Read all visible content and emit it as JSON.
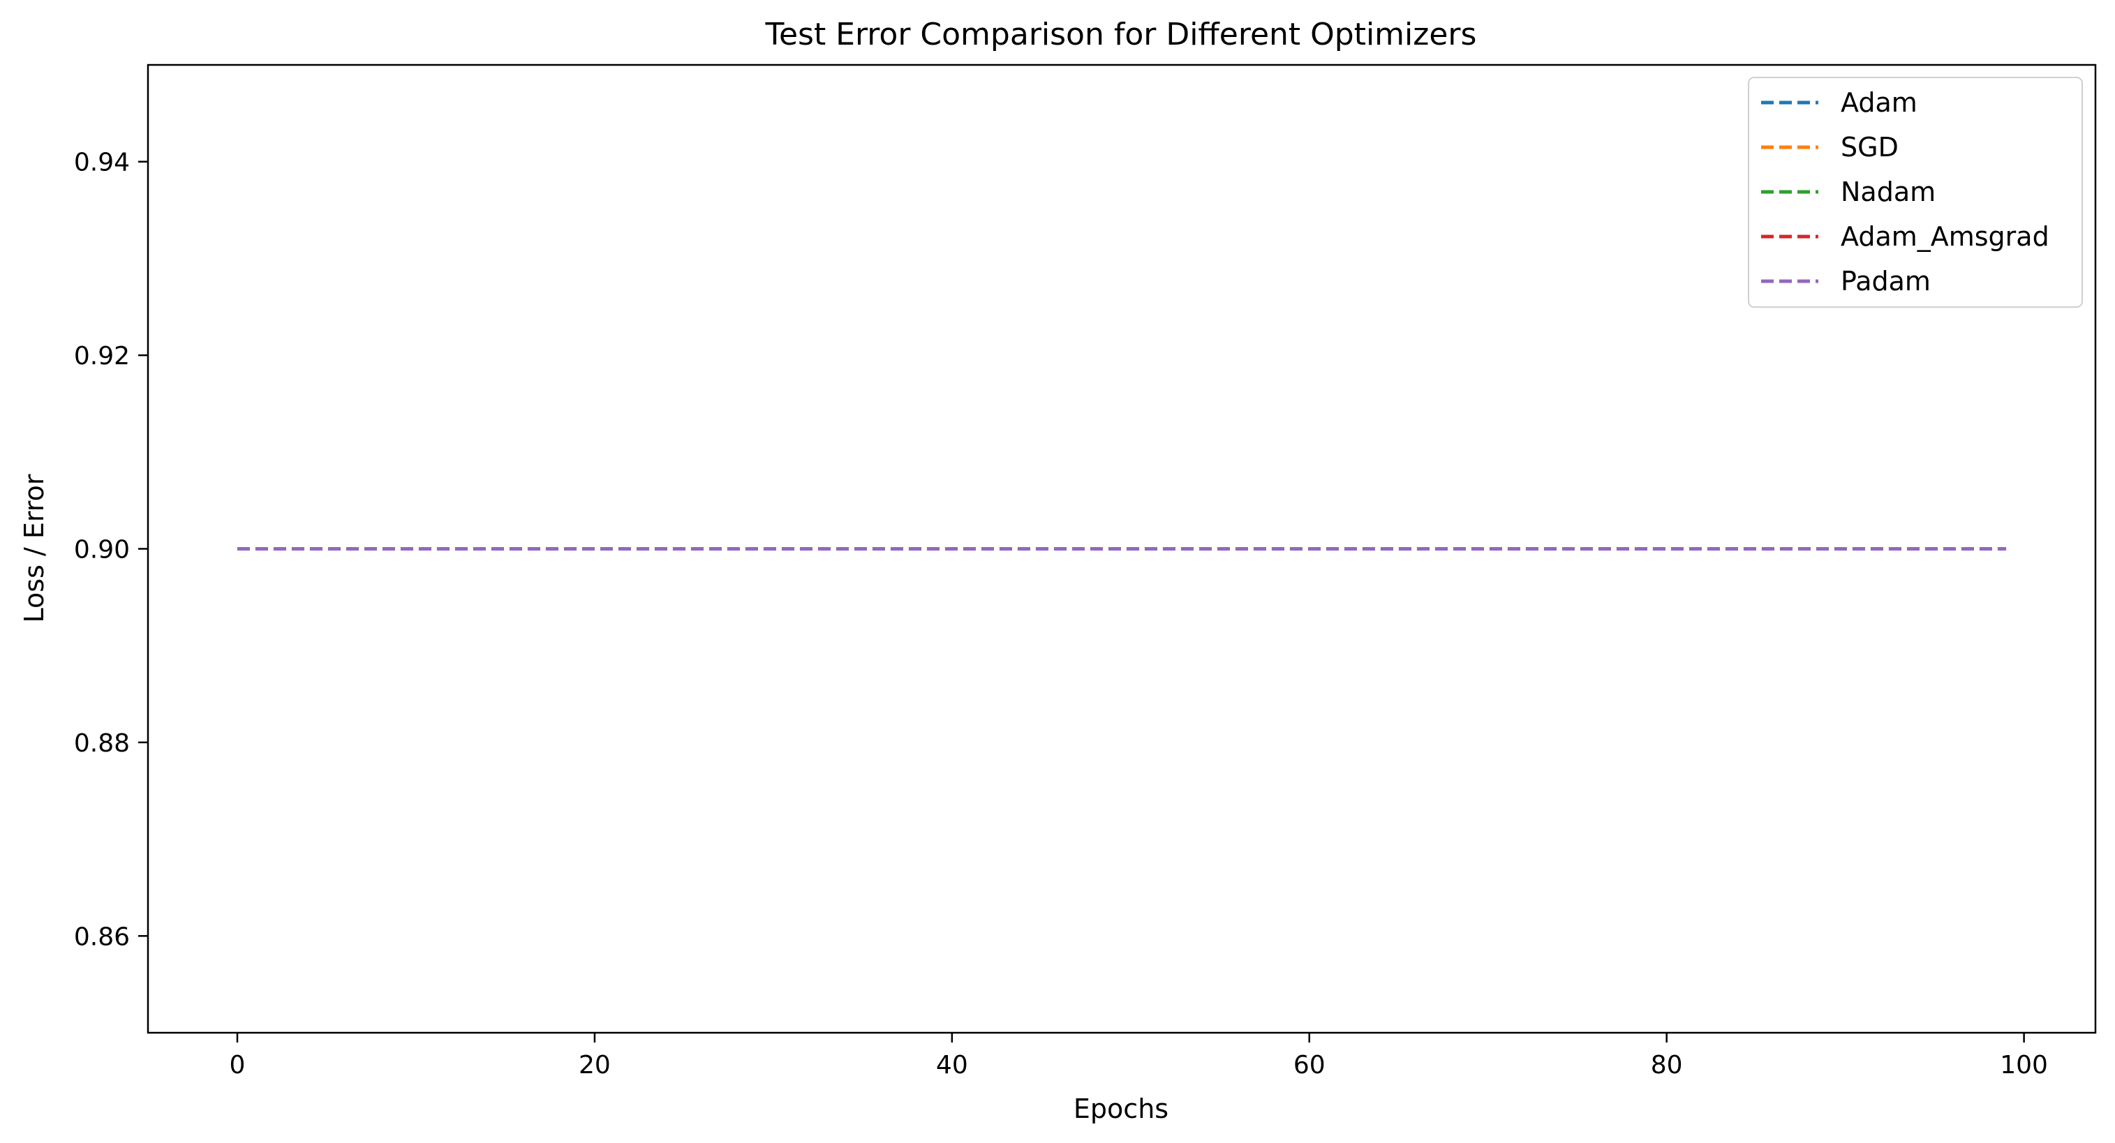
{
  "chart_data": {
    "type": "line",
    "title": "Test Error Comparison for Different Optimizers",
    "xlabel": "Epochs",
    "ylabel": "Loss / Error",
    "xlim": [
      -5,
      104
    ],
    "ylim": [
      0.85,
      0.95
    ],
    "xticks": [
      0,
      20,
      40,
      60,
      80,
      100
    ],
    "yticks": [
      0.86,
      0.88,
      0.9,
      0.92,
      0.94
    ],
    "xtick_labels": [
      "0",
      "20",
      "40",
      "60",
      "80",
      "100"
    ],
    "ytick_labels": [
      "0.86",
      "0.88",
      "0.90",
      "0.92",
      "0.94"
    ],
    "grid": false,
    "legend_position": "top-right",
    "line_style": "dashed",
    "series": [
      {
        "name": "Adam",
        "color": "#1f77b4",
        "x_start": 0,
        "x_end": 99,
        "y": 0.9
      },
      {
        "name": "SGD",
        "color": "#ff7f0e",
        "x_start": 0,
        "x_end": 99,
        "y": 0.9
      },
      {
        "name": "Nadam",
        "color": "#2ca02c",
        "x_start": 0,
        "x_end": 99,
        "y": 0.9
      },
      {
        "name": "Adam_Amsgrad",
        "color": "#d62728",
        "x_start": 0,
        "x_end": 99,
        "y": 0.9
      },
      {
        "name": "Padam",
        "color": "#9467bd",
        "x_start": 0,
        "x_end": 99,
        "y": 0.9
      }
    ]
  }
}
